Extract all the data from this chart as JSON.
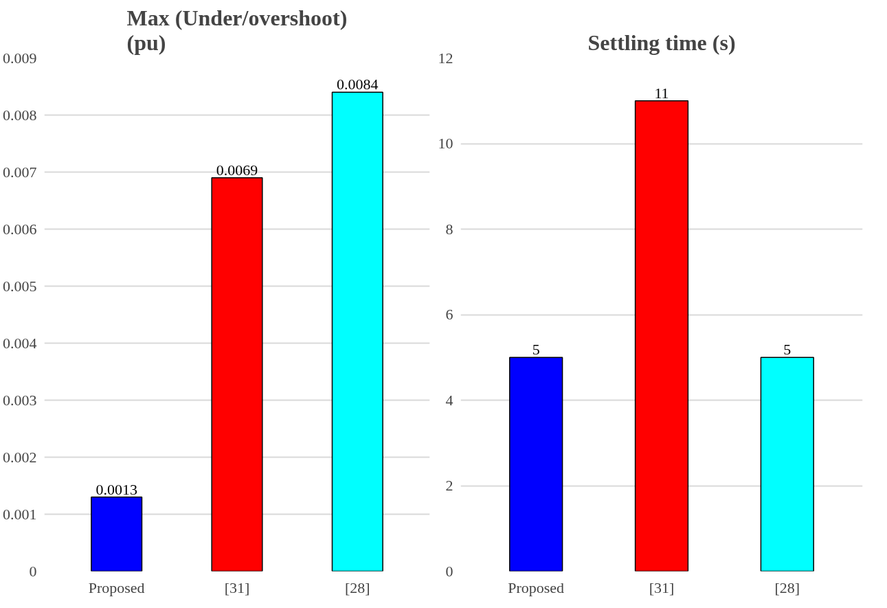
{
  "chart_data": [
    {
      "type": "bar",
      "title": "Max (Under/overshoot) (pu)",
      "categories": [
        "Proposed",
        "[31]",
        "[28]"
      ],
      "values": [
        0.0013,
        0.0069,
        0.0084
      ],
      "colors": [
        "#0000ff",
        "#ff0000",
        "#00ffff"
      ],
      "ylim": [
        0,
        0.009
      ],
      "yticks": [
        0,
        0.001,
        0.002,
        0.003,
        0.004,
        0.005,
        0.006,
        0.007,
        0.008,
        0.009
      ],
      "grid": "y",
      "data_labels": true
    },
    {
      "type": "bar",
      "title": "Settling time (s)",
      "categories": [
        "Proposed",
        "[31]",
        "[28]"
      ],
      "values": [
        5,
        11,
        5
      ],
      "colors": [
        "#0000ff",
        "#ff0000",
        "#00ffff"
      ],
      "ylim": [
        0,
        12
      ],
      "yticks": [
        0,
        2,
        4,
        6,
        8,
        10,
        12
      ],
      "grid": "y",
      "data_labels": true
    }
  ]
}
